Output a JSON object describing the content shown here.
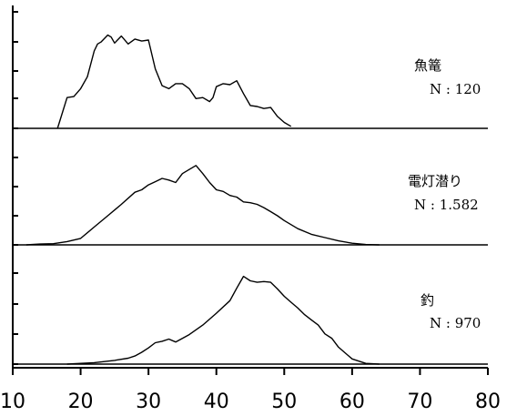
{
  "chart_data": {
    "type": "line",
    "xlim": [
      10,
      80
    ],
    "x_ticks": [
      "10",
      "20",
      "30",
      "40",
      "50",
      "60",
      "70",
      "80"
    ],
    "grid": false,
    "panels": [
      {
        "label": "魚篭",
        "n_label": "N : 120",
        "x": [
          16.6,
          18,
          19,
          20,
          21,
          22,
          22.5,
          23,
          24,
          24.5,
          25,
          26,
          27,
          28,
          29,
          30,
          31,
          32,
          33,
          34,
          35,
          36,
          37,
          38,
          39,
          39.5,
          40,
          41,
          42,
          43,
          44,
          45,
          46,
          47,
          48,
          49,
          50,
          51
        ],
        "y": [
          0,
          3.1,
          3.2,
          4,
          5.2,
          7.8,
          8.5,
          8.7,
          9.4,
          9.2,
          8.6,
          9.3,
          8.5,
          9,
          8.8,
          8.9,
          6,
          4.3,
          4,
          4.5,
          4.5,
          4,
          3,
          3.1,
          2.7,
          3.1,
          4.2,
          4.5,
          4.4,
          4.8,
          3.5,
          2.3,
          2.2,
          2,
          2.1,
          1.2,
          0.6,
          0.2
        ]
      },
      {
        "label": "電灯潜り",
        "n_label": "N : 1.582",
        "x": [
          12,
          14,
          16,
          18,
          20,
          22,
          24,
          26,
          28,
          29,
          30,
          31,
          32,
          33,
          34,
          35,
          36,
          37,
          38,
          39,
          40,
          41,
          42,
          43,
          44,
          45,
          46,
          47,
          48,
          49,
          50,
          52,
          54,
          56,
          58,
          60,
          62,
          64
        ],
        "y": [
          0,
          0.1,
          0.15,
          0.4,
          0.8,
          2.2,
          3.6,
          5,
          6.5,
          6.8,
          7.4,
          7.8,
          8.2,
          8,
          7.7,
          8.8,
          9.3,
          9.8,
          8.8,
          7.7,
          6.8,
          6.6,
          6.1,
          5.9,
          5.3,
          5.2,
          5,
          4.6,
          4.1,
          3.6,
          3,
          2,
          1.3,
          0.9,
          0.5,
          0.2,
          0.05,
          0
        ]
      },
      {
        "label": "釣",
        "n_label": "N : 970",
        "x": [
          18,
          22,
          25,
          27,
          28,
          29,
          30,
          31,
          32,
          33,
          34,
          36,
          38,
          40,
          42,
          43,
          44,
          45,
          46,
          47,
          48,
          49,
          50,
          51,
          52,
          53,
          54,
          55,
          56,
          57,
          58,
          59,
          60,
          62,
          64
        ],
        "y": [
          0,
          0.2,
          0.5,
          0.8,
          1.1,
          1.6,
          2.2,
          2.9,
          3.1,
          3.4,
          3,
          4,
          5.3,
          6.9,
          8.6,
          10.3,
          11.9,
          11.3,
          11.1,
          11.2,
          11.1,
          10.2,
          9.2,
          8.4,
          7.6,
          6.7,
          6,
          5.3,
          4.1,
          3.5,
          2.3,
          1.5,
          0.7,
          0.1,
          0
        ]
      }
    ]
  }
}
